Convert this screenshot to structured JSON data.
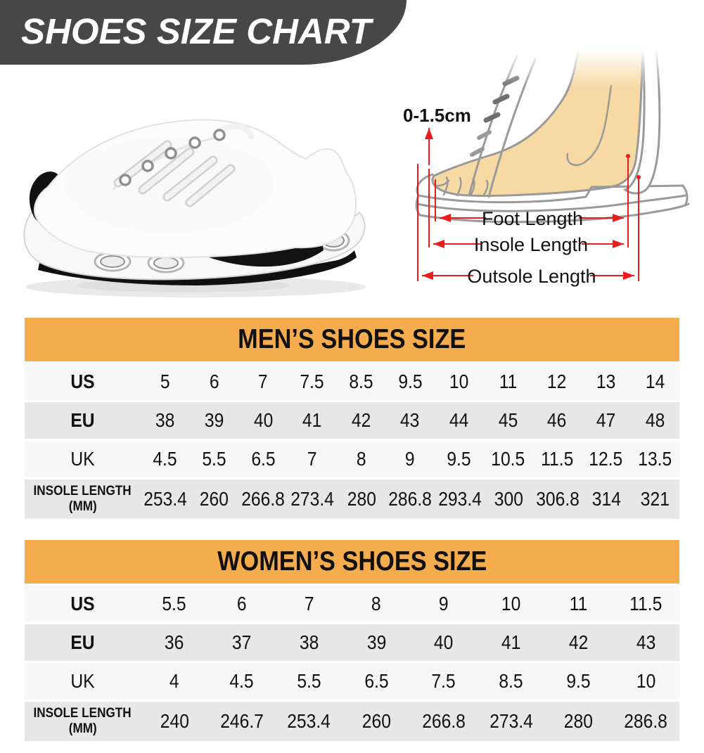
{
  "banner": {
    "title": "SHOES SIZE CHART"
  },
  "diagram": {
    "gap_label": "0-1.5cm",
    "foot_length_label": "Foot Length",
    "insole_length_label": "Insole Length",
    "outsole_length_label": "Outsole Length"
  },
  "tables": [
    {
      "id": "men",
      "title": "MEN’S SHOES SIZE",
      "rows": [
        {
          "label": "US",
          "bold": true,
          "values": [
            "5",
            "6",
            "7",
            "7.5",
            "8.5",
            "9.5",
            "10",
            "11",
            "12",
            "13",
            "14"
          ]
        },
        {
          "label": "EU",
          "bold": true,
          "values": [
            "38",
            "39",
            "40",
            "41",
            "42",
            "43",
            "44",
            "45",
            "46",
            "47",
            "48"
          ]
        },
        {
          "label": "UK",
          "bold": false,
          "values": [
            "4.5",
            "5.5",
            "6.5",
            "7",
            "8",
            "9",
            "9.5",
            "10.5",
            "11.5",
            "12.5",
            "13.5"
          ]
        },
        {
          "label": "INSOLE LENGTH",
          "sublabel": "(MM)",
          "bold": true,
          "values": [
            "253.4",
            "260",
            "266.8",
            "273.4",
            "280",
            "286.8",
            "293.4",
            "300",
            "306.8",
            "314",
            "321"
          ]
        }
      ]
    },
    {
      "id": "women",
      "title": "WOMEN’S SHOES SIZE",
      "rows": [
        {
          "label": "US",
          "bold": true,
          "values": [
            "5.5",
            "6",
            "7",
            "8",
            "9",
            "10",
            "11",
            "11.5"
          ]
        },
        {
          "label": "EU",
          "bold": true,
          "values": [
            "36",
            "37",
            "38",
            "39",
            "40",
            "41",
            "42",
            "43"
          ]
        },
        {
          "label": "UK",
          "bold": false,
          "values": [
            "4",
            "4.5",
            "5.5",
            "6.5",
            "7.5",
            "8.5",
            "9.5",
            "10"
          ]
        },
        {
          "label": "INSOLE LENGTH",
          "sublabel": "(MM)",
          "bold": true,
          "values": [
            "240",
            "246.7",
            "253.4",
            "260",
            "266.8",
            "273.4",
            "280",
            "286.8"
          ]
        }
      ]
    }
  ],
  "colors": {
    "banner": "#474747",
    "header_orange": "#f5ac4c",
    "row_light": "#f7f7f7",
    "row_dark": "#e7e7e7",
    "accent_red": "#ee1b1b",
    "foot_skin": "#f7d9a3"
  }
}
